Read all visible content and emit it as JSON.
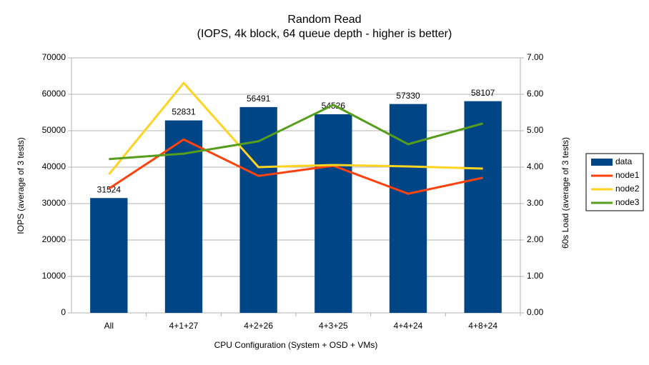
{
  "chart_data": {
    "type": "bar",
    "title": "Random Read",
    "subtitle": "(IOPS, 4k block, 64 queue depth - higher is better)",
    "x_label": "CPU Configuration (System + OSD + VMs)",
    "y_label": "IOPS (average of 3 tests)",
    "y2_label": "60s Load (average of 3 tests)",
    "categories": [
      "All",
      "4+1+27",
      "4+2+26",
      "4+3+25",
      "4+4+24",
      "4+8+24"
    ],
    "series": [
      {
        "name": "data",
        "type": "bar",
        "color": "#004586",
        "values": [
          31524,
          52831,
          56491,
          54526,
          57330,
          58107
        ]
      },
      {
        "name": "node1",
        "type": "line",
        "axis": "y2",
        "color": "#ff420e",
        "values": [
          3.41,
          4.76,
          3.76,
          4.04,
          3.27,
          3.71
        ]
      },
      {
        "name": "node2",
        "type": "line",
        "axis": "y2",
        "color": "#ffd320",
        "values": [
          3.8,
          6.31,
          4.0,
          4.06,
          4.02,
          3.96
        ]
      },
      {
        "name": "node3",
        "type": "line",
        "axis": "y2",
        "color": "#579d1c",
        "values": [
          4.22,
          4.37,
          4.71,
          5.71,
          4.63,
          5.2
        ]
      }
    ],
    "ylim": [
      0,
      70000
    ],
    "yticks": [
      0,
      10000,
      20000,
      30000,
      40000,
      50000,
      60000,
      70000
    ],
    "y2lim": [
      0,
      7
    ],
    "y2ticks": [
      {
        "value": 0,
        "label": "0.00"
      },
      {
        "value": 1,
        "label": "1.00"
      },
      {
        "value": 2,
        "label": "2.00"
      },
      {
        "value": 3,
        "label": "3.00"
      },
      {
        "value": 4,
        "label": "4.00"
      },
      {
        "value": 5,
        "label": "5.00"
      },
      {
        "value": 6,
        "label": "6.00"
      },
      {
        "value": 7,
        "label": "7.00"
      }
    ],
    "grid": true,
    "legend": "right"
  }
}
